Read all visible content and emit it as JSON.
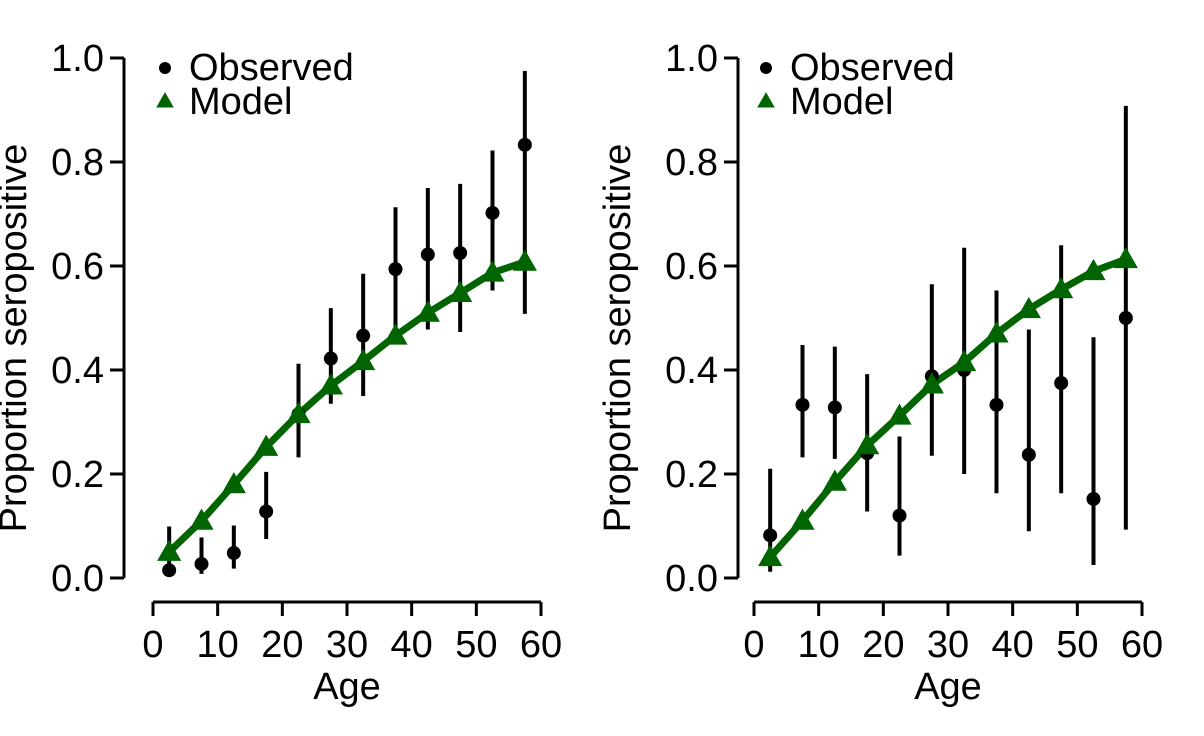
{
  "chart_data": [
    {
      "type": "scatter",
      "xlabel": "Age",
      "ylabel": "Proportion seropositive",
      "xlim": [
        0,
        60
      ],
      "ylim": [
        0,
        1
      ],
      "xticks": [
        "0",
        "10",
        "20",
        "30",
        "40",
        "50",
        "60"
      ],
      "yticks": [
        "0.0",
        "0.2",
        "0.4",
        "0.6",
        "0.8",
        "1.0"
      ],
      "grid": false,
      "legend_position": "top-left",
      "series": [
        {
          "name": "Observed",
          "marker": "circle",
          "color": "#000000",
          "x": [
            2.5,
            7.5,
            12.5,
            17.5,
            22.5,
            27.5,
            32.5,
            37.5,
            42.5,
            47.5,
            52.5,
            57.5
          ],
          "y": [
            0.015,
            0.027,
            0.048,
            0.128,
            0.315,
            0.422,
            0.466,
            0.594,
            0.622,
            0.625,
            0.702,
            0.833
          ],
          "lower": [
            0.003,
            0.008,
            0.018,
            0.075,
            0.232,
            0.335,
            0.35,
            0.467,
            0.478,
            0.473,
            0.553,
            0.508
          ],
          "upper": [
            0.099,
            0.078,
            0.101,
            0.204,
            0.412,
            0.519,
            0.585,
            0.713,
            0.75,
            0.758,
            0.822,
            0.975
          ]
        },
        {
          "name": "Model",
          "marker": "triangle",
          "color": "#006400",
          "x": [
            2.5,
            7.5,
            12.5,
            17.5,
            22.5,
            27.5,
            32.5,
            37.5,
            42.5,
            47.5,
            52.5,
            57.5
          ],
          "y": [
            0.05,
            0.11,
            0.18,
            0.252,
            0.315,
            0.37,
            0.417,
            0.466,
            0.51,
            0.548,
            0.587,
            0.608
          ]
        }
      ]
    },
    {
      "type": "scatter",
      "xlabel": "Age",
      "ylabel": "Proportion seropositive",
      "xlim": [
        0,
        60
      ],
      "ylim": [
        0,
        1
      ],
      "xticks": [
        "0",
        "10",
        "20",
        "30",
        "40",
        "50",
        "60"
      ],
      "yticks": [
        "0.0",
        "0.2",
        "0.4",
        "0.6",
        "0.8",
        "1.0"
      ],
      "grid": false,
      "legend_position": "top-left",
      "series": [
        {
          "name": "Observed",
          "marker": "circle",
          "color": "#000000",
          "x": [
            2.5,
            7.5,
            12.5,
            17.5,
            22.5,
            27.5,
            32.5,
            37.5,
            42.5,
            47.5,
            52.5,
            57.5
          ],
          "y": [
            0.082,
            0.333,
            0.328,
            0.24,
            0.12,
            0.388,
            0.4,
            0.333,
            0.237,
            0.375,
            0.152,
            0.5
          ],
          "lower": [
            0.012,
            0.232,
            0.229,
            0.128,
            0.043,
            0.235,
            0.2,
            0.163,
            0.09,
            0.163,
            0.025,
            0.093
          ],
          "upper": [
            0.21,
            0.448,
            0.445,
            0.392,
            0.272,
            0.565,
            0.635,
            0.553,
            0.478,
            0.64,
            0.463,
            0.908
          ]
        },
        {
          "name": "Model",
          "marker": "triangle",
          "color": "#006400",
          "x": [
            2.5,
            7.5,
            12.5,
            17.5,
            22.5,
            27.5,
            32.5,
            37.5,
            42.5,
            47.5,
            52.5,
            57.5
          ],
          "y": [
            0.04,
            0.11,
            0.185,
            0.255,
            0.312,
            0.372,
            0.415,
            0.47,
            0.517,
            0.555,
            0.59,
            0.613
          ]
        }
      ]
    }
  ]
}
